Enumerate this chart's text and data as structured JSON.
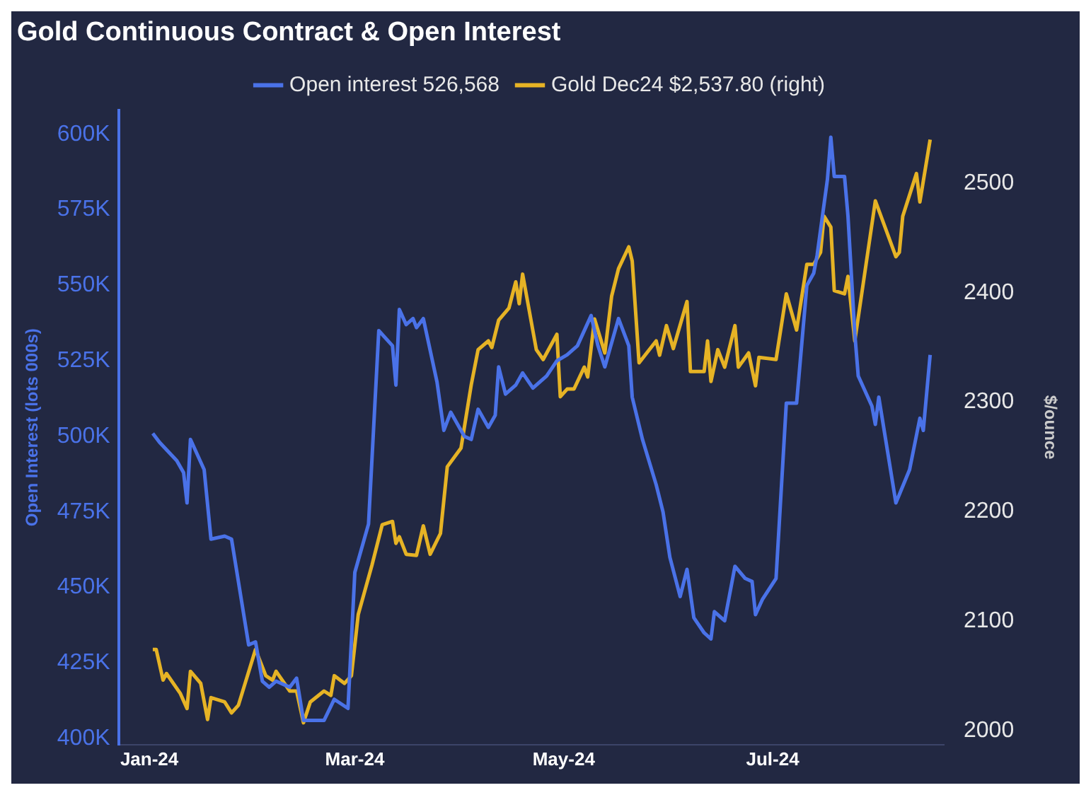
{
  "chart_data": {
    "type": "line",
    "title": "Gold Continuous Contract & Open Interest",
    "ylabel": "Open Interest (lots 000s)",
    "y2label": "$/ounce",
    "xlim": [
      "2023-12-23",
      "2024-08-20"
    ],
    "xticks": [
      {
        "value": "2024-01-01",
        "label": "Jan-24"
      },
      {
        "value": "2024-03-01",
        "label": "Mar-24"
      },
      {
        "value": "2024-05-01",
        "label": "May-24"
      },
      {
        "value": "2024-07-01",
        "label": "Jul-24"
      }
    ],
    "ylim": [
      398,
      608
    ],
    "yticks": [
      {
        "value": 400,
        "label": "400K"
      },
      {
        "value": 425,
        "label": "425K"
      },
      {
        "value": 450,
        "label": "450K"
      },
      {
        "value": 475,
        "label": "475K"
      },
      {
        "value": 500,
        "label": "500K"
      },
      {
        "value": 525,
        "label": "525K"
      },
      {
        "value": 550,
        "label": "550K"
      },
      {
        "value": 575,
        "label": "575K"
      },
      {
        "value": 600,
        "label": "600K"
      }
    ],
    "y2lim": [
      1987,
      2567
    ],
    "y2ticks": [
      2000,
      2100,
      2200,
      2300,
      2400,
      2500
    ],
    "grid": false,
    "legend": "top",
    "marker": "none",
    "line_style": "solid",
    "series": [
      {
        "name": "Open interest 526,568",
        "color": "#4a72e8",
        "x": [
          "2024-01-02",
          "2024-01-04",
          "2024-01-09",
          "2024-01-11",
          "2024-01-12",
          "2024-01-13",
          "2024-01-17",
          "2024-01-19",
          "2024-01-23",
          "2024-01-25",
          "2024-01-30",
          "2024-02-01",
          "2024-02-03",
          "2024-02-05",
          "2024-02-07",
          "2024-02-11",
          "2024-02-13",
          "2024-02-15",
          "2024-02-21",
          "2024-02-24",
          "2024-02-28",
          "2024-03-01",
          "2024-03-05",
          "2024-03-08",
          "2024-03-12",
          "2024-03-13",
          "2024-03-14",
          "2024-03-16",
          "2024-03-18",
          "2024-03-19",
          "2024-03-21",
          "2024-03-25",
          "2024-03-27",
          "2024-03-29",
          "2024-04-02",
          "2024-04-04",
          "2024-04-06",
          "2024-04-09",
          "2024-04-11",
          "2024-04-12",
          "2024-04-14",
          "2024-04-17",
          "2024-04-19",
          "2024-04-22",
          "2024-04-26",
          "2024-04-29",
          "2024-05-02",
          "2024-05-05",
          "2024-05-09",
          "2024-05-11",
          "2024-05-13",
          "2024-05-17",
          "2024-05-20",
          "2024-05-21",
          "2024-05-24",
          "2024-05-28",
          "2024-05-30",
          "2024-06-01",
          "2024-06-04",
          "2024-06-06",
          "2024-06-08",
          "2024-06-11",
          "2024-06-13",
          "2024-06-14",
          "2024-06-17",
          "2024-06-20",
          "2024-06-23",
          "2024-06-25",
          "2024-06-26",
          "2024-06-28",
          "2024-07-02",
          "2024-07-05",
          "2024-07-08",
          "2024-07-11",
          "2024-07-13",
          "2024-07-14",
          "2024-07-17",
          "2024-07-18",
          "2024-07-19",
          "2024-07-22",
          "2024-07-23",
          "2024-07-25",
          "2024-07-26",
          "2024-07-30",
          "2024-07-31",
          "2024-08-01",
          "2024-08-06",
          "2024-08-10",
          "2024-08-13",
          "2024-08-14",
          "2024-08-16"
        ],
        "values": [
          501,
          498,
          492,
          488,
          478,
          499,
          489,
          466,
          467,
          466,
          431,
          432,
          419,
          417,
          419,
          417,
          420,
          406,
          406,
          413,
          410,
          455,
          471,
          535,
          530,
          517,
          542,
          537,
          539,
          536,
          539,
          518,
          502,
          508,
          500,
          499,
          509,
          503,
          507,
          523,
          514,
          517,
          521,
          516,
          520,
          525,
          527,
          530,
          540,
          530,
          523,
          539,
          530,
          513,
          499,
          484,
          475,
          460,
          447,
          456,
          440,
          435,
          433,
          442,
          439,
          457,
          453,
          452,
          441,
          446,
          453,
          511,
          511,
          550,
          554,
          560,
          585,
          599,
          586,
          586,
          573,
          534,
          520,
          510,
          504,
          513,
          478,
          489,
          506,
          502,
          527
        ]
      },
      {
        "name": "Gold Dec24 $2,537.80 (right)",
        "color": "#e6b325",
        "axis": "y2",
        "x": [
          "2024-01-02",
          "2024-01-03",
          "2024-01-05",
          "2024-01-06",
          "2024-01-10",
          "2024-01-12",
          "2024-01-13",
          "2024-01-16",
          "2024-01-18",
          "2024-01-19",
          "2024-01-23",
          "2024-01-25",
          "2024-01-27",
          "2024-02-01",
          "2024-02-04",
          "2024-02-06",
          "2024-02-07",
          "2024-02-11",
          "2024-02-13",
          "2024-02-15",
          "2024-02-17",
          "2024-02-21",
          "2024-02-23",
          "2024-02-24",
          "2024-02-27",
          "2024-02-29",
          "2024-03-02",
          "2024-03-06",
          "2024-03-09",
          "2024-03-12",
          "2024-03-13",
          "2024-03-14",
          "2024-03-16",
          "2024-03-19",
          "2024-03-21",
          "2024-03-23",
          "2024-03-26",
          "2024-03-28",
          "2024-04-01",
          "2024-04-04",
          "2024-04-06",
          "2024-04-09",
          "2024-04-10",
          "2024-04-12",
          "2024-04-15",
          "2024-04-17",
          "2024-04-18",
          "2024-04-19",
          "2024-04-23",
          "2024-04-25",
          "2024-04-29",
          "2024-04-30",
          "2024-05-02",
          "2024-05-04",
          "2024-05-07",
          "2024-05-08",
          "2024-05-10",
          "2024-05-13",
          "2024-05-15",
          "2024-05-17",
          "2024-05-20",
          "2024-05-21",
          "2024-05-23",
          "2024-05-28",
          "2024-05-29",
          "2024-05-31",
          "2024-06-02",
          "2024-06-06",
          "2024-06-07",
          "2024-06-11",
          "2024-06-12",
          "2024-06-13",
          "2024-06-15",
          "2024-06-17",
          "2024-06-20",
          "2024-06-21",
          "2024-06-24",
          "2024-06-26",
          "2024-06-27",
          "2024-07-02",
          "2024-07-05",
          "2024-07-08",
          "2024-07-11",
          "2024-07-13",
          "2024-07-15",
          "2024-07-16",
          "2024-07-18",
          "2024-07-19",
          "2024-07-22",
          "2024-07-23",
          "2024-07-25",
          "2024-07-31",
          "2024-08-06",
          "2024-08-07",
          "2024-08-08",
          "2024-08-12",
          "2024-08-13",
          "2024-08-16"
        ],
        "values": [
          2074,
          2074,
          2046,
          2052,
          2034,
          2020,
          2054,
          2043,
          2010,
          2030,
          2026,
          2016,
          2023,
          2074,
          2050,
          2046,
          2054,
          2036,
          2036,
          2007,
          2026,
          2036,
          2032,
          2050,
          2043,
          2050,
          2106,
          2151,
          2188,
          2191,
          2171,
          2177,
          2161,
          2160,
          2187,
          2161,
          2180,
          2241,
          2258,
          2316,
          2348,
          2356,
          2350,
          2375,
          2386,
          2410,
          2390,
          2417,
          2348,
          2339,
          2362,
          2305,
          2312,
          2312,
          2332,
          2323,
          2376,
          2345,
          2397,
          2422,
          2442,
          2429,
          2336,
          2356,
          2343,
          2370,
          2349,
          2392,
          2328,
          2328,
          2356,
          2319,
          2348,
          2332,
          2370,
          2332,
          2345,
          2315,
          2341,
          2339,
          2399,
          2366,
          2426,
          2426,
          2437,
          2470,
          2460,
          2402,
          2399,
          2415,
          2356,
          2484,
          2433,
          2437,
          2470,
          2509,
          2483,
          2540
        ]
      }
    ]
  }
}
